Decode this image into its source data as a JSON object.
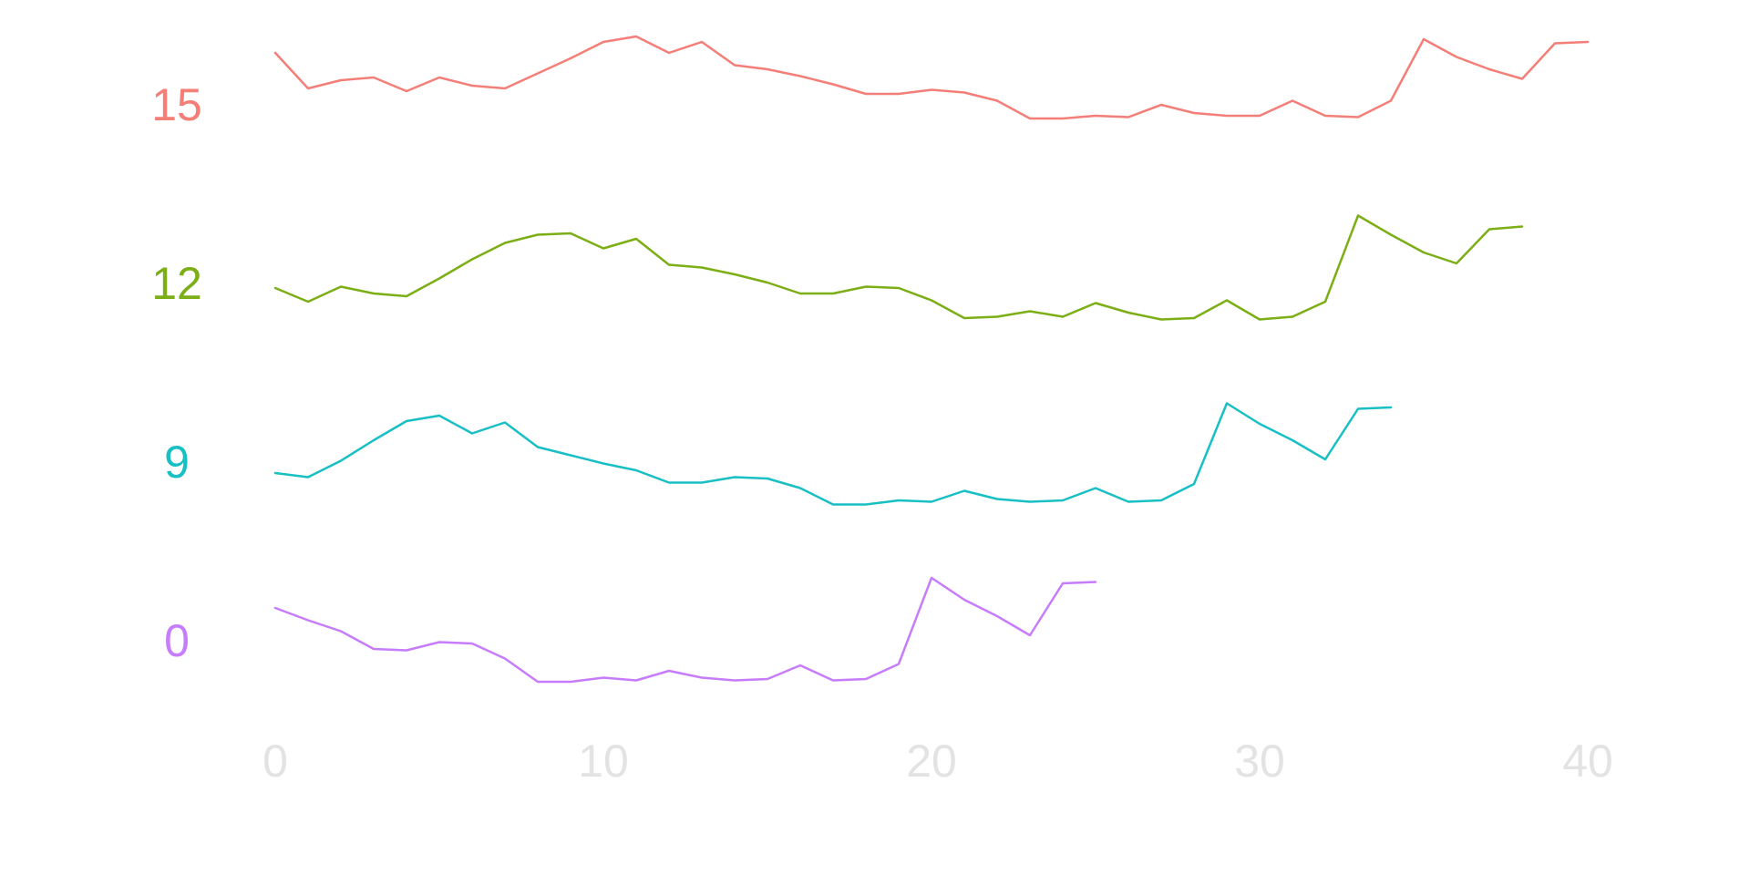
{
  "chart_data": {
    "type": "line",
    "title": "",
    "xlabel": "",
    "ylabel": "",
    "xlim": [
      0,
      40
    ],
    "x_ticks": [
      "0",
      "10",
      "20",
      "30",
      "40"
    ],
    "grid": false,
    "legend": "none",
    "series": [
      {
        "name": "15",
        "color": "#f47e78",
        "x_start": 15,
        "values": [
          0.88,
          0.62,
          0.68,
          0.7,
          0.6,
          0.7,
          0.64,
          0.62,
          0.73,
          0.84,
          0.96,
          1.0,
          0.88,
          0.96,
          0.79,
          0.76,
          0.71,
          0.65,
          0.58,
          0.58,
          0.61,
          0.59,
          0.53,
          0.4,
          0.4,
          0.42,
          0.41,
          0.5,
          0.44,
          0.42,
          0.42,
          0.53,
          0.42,
          0.41,
          0.53,
          0.98,
          0.85,
          0.76,
          0.69,
          0.95,
          0.96
        ]
      },
      {
        "name": "12",
        "color": "#7cae16",
        "x_start": 12,
        "values": [
          0.46,
          0.36,
          0.47,
          0.42,
          0.4,
          0.53,
          0.67,
          0.79,
          0.85,
          0.86,
          0.75,
          0.82,
          0.63,
          0.61,
          0.56,
          0.5,
          0.42,
          0.42,
          0.47,
          0.46,
          0.37,
          0.24,
          0.25,
          0.29,
          0.25,
          0.35,
          0.28,
          0.23,
          0.24,
          0.37,
          0.23,
          0.25,
          0.36,
          0.99,
          0.85,
          0.72,
          0.64,
          0.89,
          0.91
        ]
      },
      {
        "name": "9",
        "color": "#18bfc4",
        "x_start": 9,
        "values": [
          0.42,
          0.39,
          0.51,
          0.66,
          0.8,
          0.84,
          0.71,
          0.79,
          0.61,
          0.55,
          0.49,
          0.44,
          0.35,
          0.35,
          0.39,
          0.38,
          0.31,
          0.19,
          0.19,
          0.22,
          0.21,
          0.29,
          0.23,
          0.21,
          0.22,
          0.31,
          0.21,
          0.22,
          0.34,
          0.93,
          0.78,
          0.66,
          0.52,
          0.89,
          0.9
        ]
      },
      {
        "name": "0",
        "color": "#c77cfb",
        "x_start": 0,
        "values": [
          0.74,
          0.65,
          0.57,
          0.44,
          0.43,
          0.49,
          0.48,
          0.37,
          0.2,
          0.2,
          0.23,
          0.21,
          0.28,
          0.23,
          0.21,
          0.22,
          0.32,
          0.21,
          0.22,
          0.33,
          0.96,
          0.8,
          0.68,
          0.54,
          0.92,
          0.93
        ]
      }
    ]
  }
}
